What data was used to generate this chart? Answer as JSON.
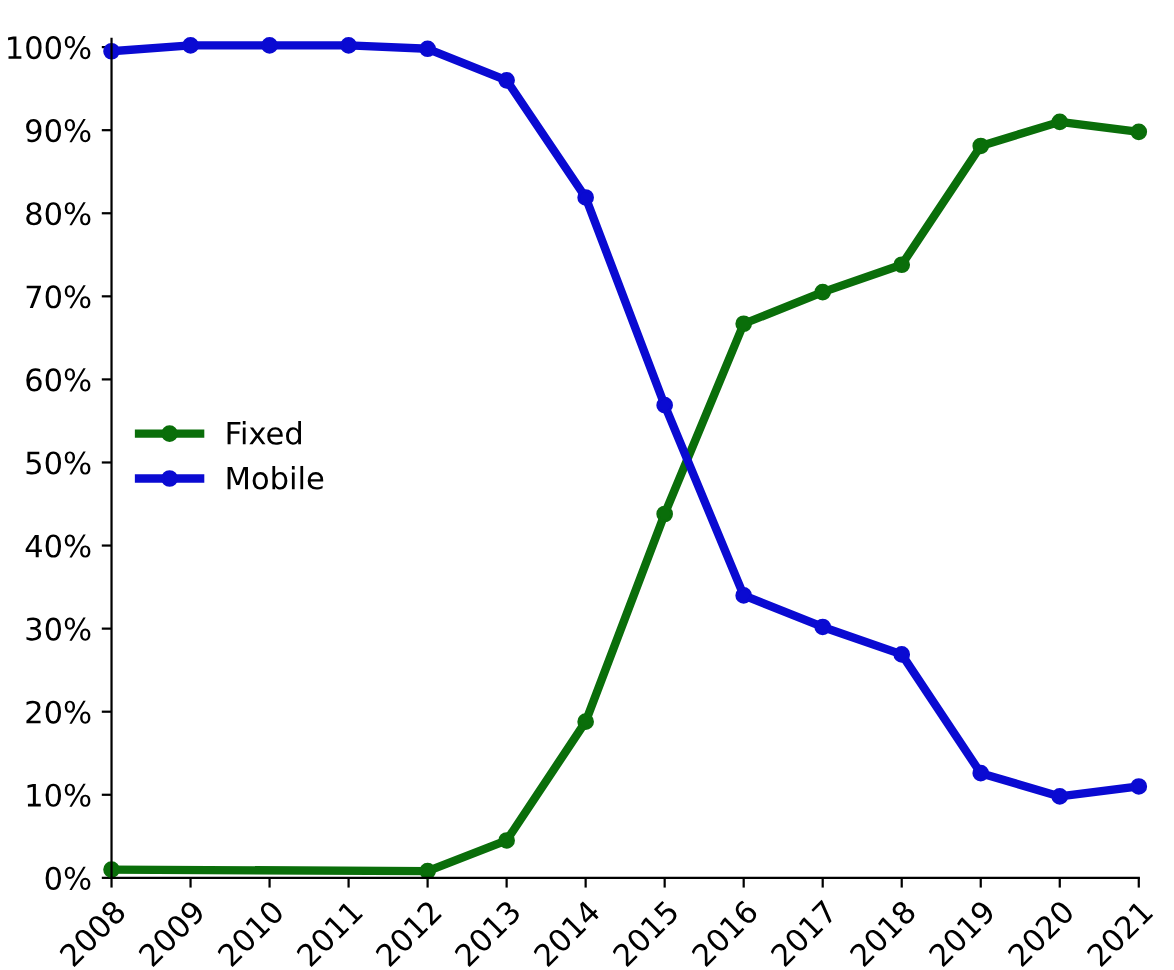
{
  "chart_data": {
    "type": "line",
    "xlim": [
      2008,
      2021
    ],
    "xticks": [
      2008,
      2009,
      2010,
      2011,
      2012,
      2013,
      2014,
      2015,
      2016,
      2017,
      2018,
      2019,
      2020,
      2021
    ],
    "ylim": [
      0,
      101
    ],
    "yticks": [
      {
        "value": 0,
        "label": "0%"
      },
      {
        "value": 10,
        "label": "10%"
      },
      {
        "value": 20,
        "label": "20%"
      },
      {
        "value": 30,
        "label": "30%"
      },
      {
        "value": 40,
        "label": "40%"
      },
      {
        "value": 50,
        "label": "50%"
      },
      {
        "value": 60,
        "label": "60%"
      },
      {
        "value": 70,
        "label": "70%"
      },
      {
        "value": 80,
        "label": "80%"
      },
      {
        "value": 90,
        "label": "90%"
      },
      {
        "value": 100,
        "label": "100%"
      }
    ],
    "series": [
      {
        "name": "Fixed",
        "color": "#0a6e0a",
        "x": [
          2008,
          2012,
          2013,
          2014,
          2015,
          2016,
          2017,
          2018,
          2019,
          2020,
          2021
        ],
        "values": [
          1,
          0.8,
          4.5,
          18.8,
          43.8,
          66.7,
          70.5,
          73.8,
          88.1,
          91,
          89.8
        ]
      },
      {
        "name": "Mobile",
        "color": "#0a0ad2",
        "x": [
          2008,
          2009,
          2010,
          2011,
          2012,
          2013,
          2014,
          2015,
          2016,
          2017,
          2018,
          2019,
          2020,
          2021
        ],
        "values": [
          99.5,
          100.2,
          100.2,
          100.2,
          99.8,
          96,
          81.9,
          56.9,
          34,
          30.2,
          26.9,
          12.6,
          9.8,
          11
        ]
      }
    ],
    "marker": "circle",
    "line_style": "solid",
    "grid": false,
    "legend": "left"
  }
}
